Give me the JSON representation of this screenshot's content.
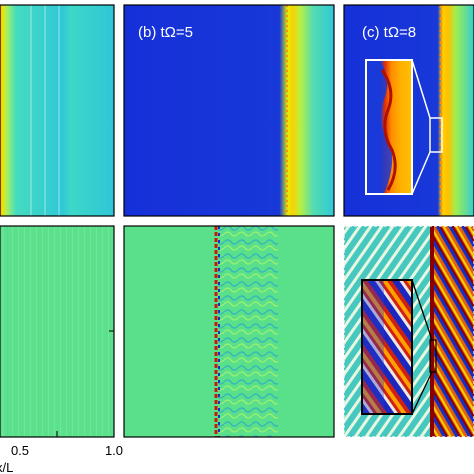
{
  "figure": {
    "panel_labels": {
      "b": "(b) tΩ=5",
      "c": "(c) tΩ=8"
    },
    "x_tick_labels": [
      "0.5",
      "1.0"
    ],
    "x_axis_label": "x/L"
  },
  "colors": {
    "background_blue": "#1a3fd6",
    "field_cyan": "#2fd0d0",
    "field_green": "#5ae08a",
    "front_yellow": "#f2e400",
    "front_orange": "#ff8a00",
    "front_red": "#c8180a",
    "dark_red": "#7a0000",
    "frame": "#000000",
    "inset_border": "#ffffff",
    "connector_lines": "#000000"
  }
}
